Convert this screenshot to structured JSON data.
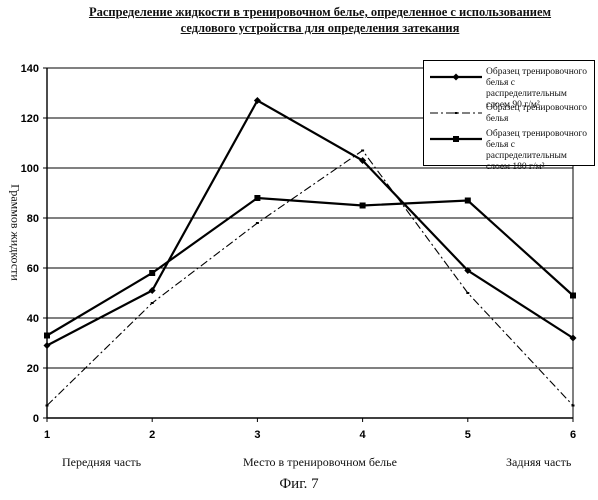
{
  "chart_data": {
    "type": "line",
    "title_lines": [
      "Распределение жидкости в тренировочном белье, определенное с использованием",
      "седлового устройства для определения затекания"
    ],
    "ylabel": "Граммов жидкости",
    "xlabel": "Место в тренировочном белье",
    "x_left_label": "Передняя часть",
    "x_right_label": "Задняя часть",
    "figure_label": "Фиг. 7",
    "x": [
      1,
      2,
      3,
      4,
      5,
      6
    ],
    "x_tick_labels": [
      "1",
      "2",
      "3",
      "4",
      "5",
      "6"
    ],
    "ylim": [
      0,
      140
    ],
    "y_ticks": [
      0,
      20,
      40,
      60,
      80,
      100,
      120,
      140
    ],
    "grid": "horizontal",
    "legend_position": "top-right",
    "series": [
      {
        "name_lines": [
          "Образец тренировочного",
          "белья с распределительным",
          "слоем 90 г/м²"
        ],
        "style": "solid-diamond",
        "values": [
          29,
          51,
          127,
          103,
          59,
          32
        ]
      },
      {
        "name_lines": [
          "Образец тренировочного",
          "белья"
        ],
        "style": "dashdot",
        "values": [
          5,
          46,
          78,
          107,
          50,
          5
        ]
      },
      {
        "name_lines": [
          "Образец тренировочного",
          "белья с распределительным",
          "слоем 180 г/м²"
        ],
        "style": "solid-square",
        "values": [
          33,
          58,
          88,
          85,
          87,
          49
        ]
      }
    ]
  }
}
